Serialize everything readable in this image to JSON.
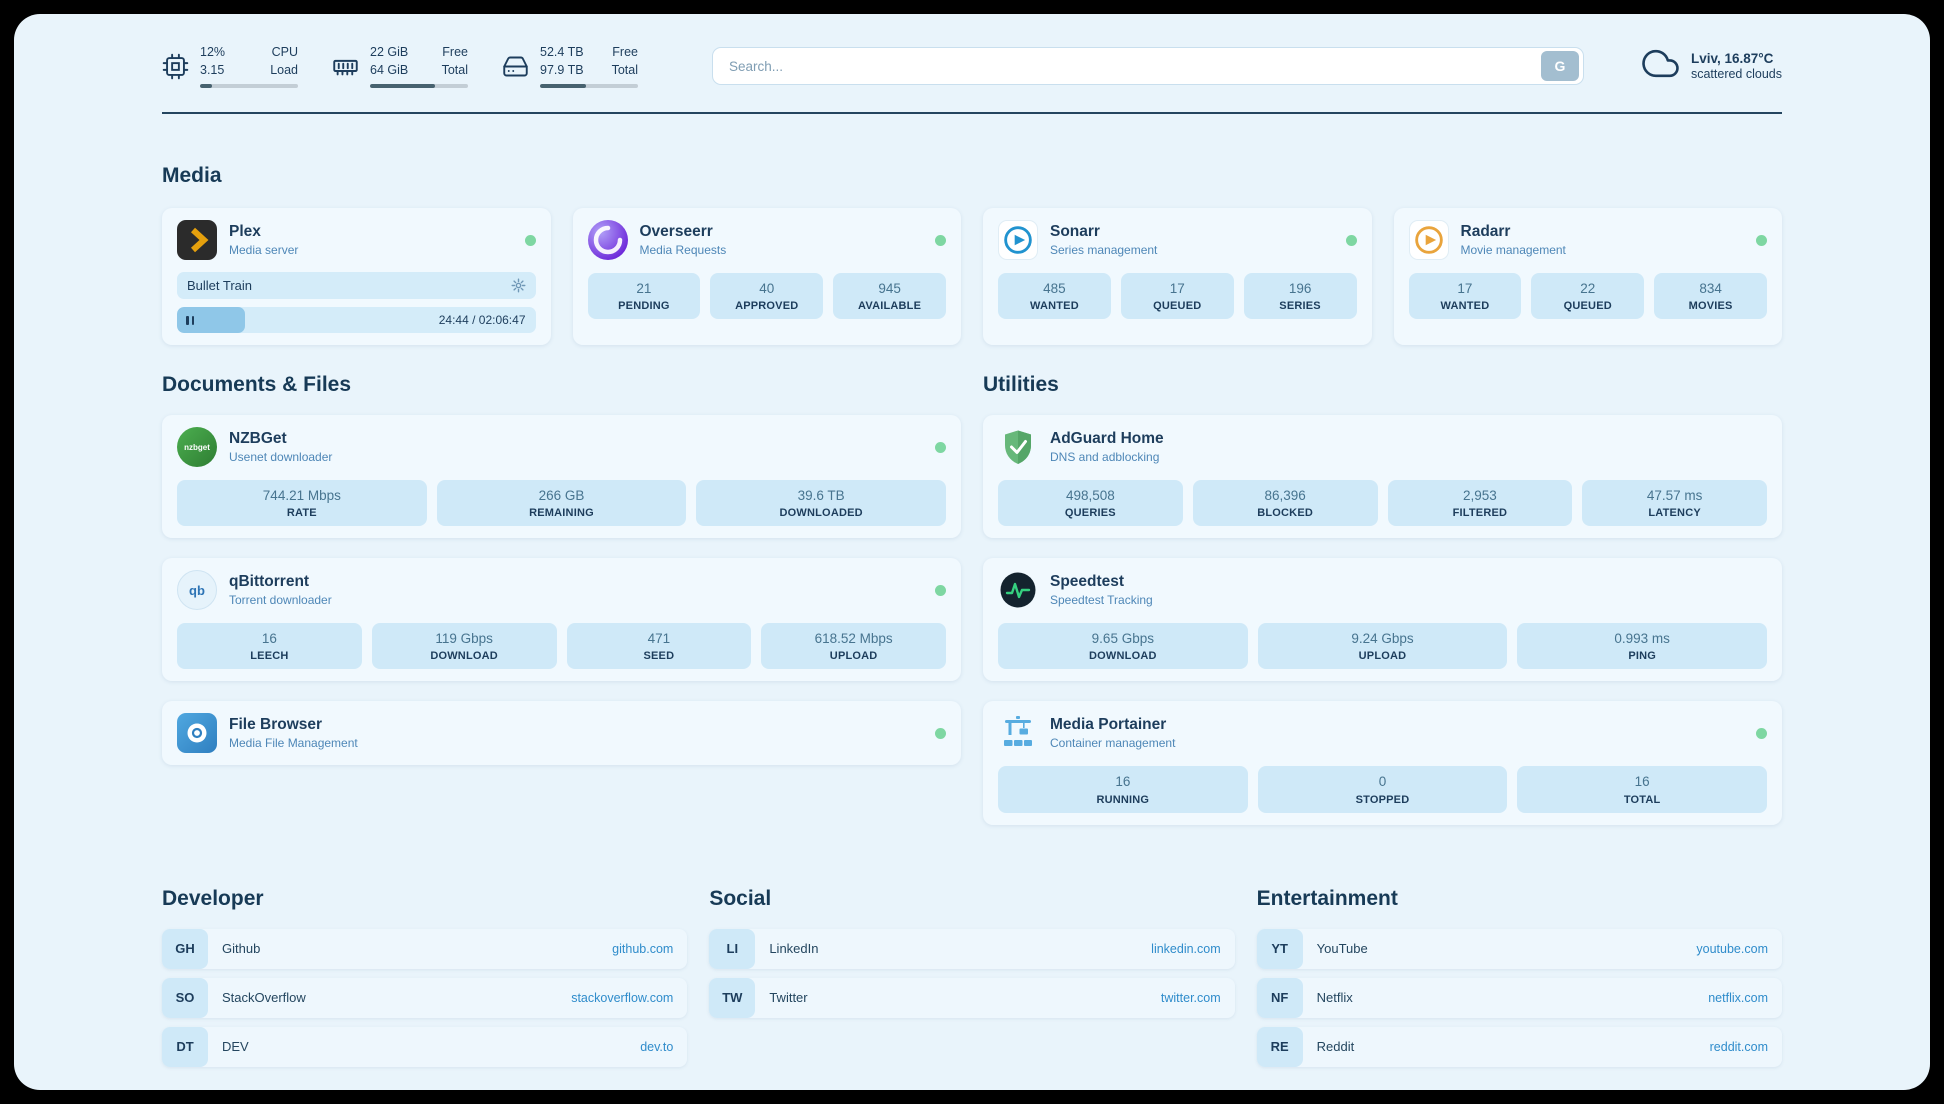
{
  "topbar": {
    "widgets": [
      {
        "name": "cpu",
        "rows": [
          {
            "value": "12%",
            "label": "CPU"
          },
          {
            "value": "3.15",
            "label": "Load"
          }
        ],
        "bar_percent": 12
      },
      {
        "name": "ram",
        "rows": [
          {
            "value": "22 GiB",
            "label": "Free"
          },
          {
            "value": "64 GiB",
            "label": "Total"
          }
        ],
        "bar_percent": 66
      },
      {
        "name": "disk",
        "rows": [
          {
            "value": "52.4 TB",
            "label": "Free"
          },
          {
            "value": "97.9 TB",
            "label": "Total"
          }
        ],
        "bar_percent": 47
      }
    ],
    "search": {
      "placeholder": "Search...",
      "button_label": "G"
    },
    "weather": {
      "location": "Lviv, 16.87°C",
      "condition": "scattered clouds"
    }
  },
  "sections": {
    "media": {
      "title": "Media",
      "plex": {
        "title": "Plex",
        "subtitle": "Media server",
        "now_playing": "Bullet Train",
        "progress_time": "24:44 / 02:06:47",
        "progress_percent": 19
      },
      "overseerr": {
        "title": "Overseerr",
        "subtitle": "Media Requests",
        "stats": [
          {
            "value": "21",
            "label": "PENDING"
          },
          {
            "value": "40",
            "label": "APPROVED"
          },
          {
            "value": "945",
            "label": "AVAILABLE"
          }
        ]
      },
      "sonarr": {
        "title": "Sonarr",
        "subtitle": "Series management",
        "stats": [
          {
            "value": "485",
            "label": "WANTED"
          },
          {
            "value": "17",
            "label": "QUEUED"
          },
          {
            "value": "196",
            "label": "SERIES"
          }
        ]
      },
      "radarr": {
        "title": "Radarr",
        "subtitle": "Movie management",
        "stats": [
          {
            "value": "17",
            "label": "WANTED"
          },
          {
            "value": "22",
            "label": "QUEUED"
          },
          {
            "value": "834",
            "label": "MOVIES"
          }
        ]
      }
    },
    "documents": {
      "title": "Documents & Files",
      "nzbget": {
        "title": "NZBGet",
        "subtitle": "Usenet downloader",
        "icon_text": "nzbget",
        "stats": [
          {
            "value": "744.21 Mbps",
            "label": "RATE"
          },
          {
            "value": "266 GB",
            "label": "REMAINING"
          },
          {
            "value": "39.6 TB",
            "label": "DOWNLOADED"
          }
        ]
      },
      "qbittorrent": {
        "title": "qBittorrent",
        "subtitle": "Torrent downloader",
        "icon_text": "qb",
        "stats": [
          {
            "value": "16",
            "label": "LEECH"
          },
          {
            "value": "119 Gbps",
            "label": "DOWNLOAD"
          },
          {
            "value": "471",
            "label": "SEED"
          },
          {
            "value": "618.52 Mbps",
            "label": "UPLOAD"
          }
        ]
      },
      "filebrowser": {
        "title": "File Browser",
        "subtitle": "Media File Management"
      }
    },
    "utilities": {
      "title": "Utilities",
      "adguard": {
        "title": "AdGuard Home",
        "subtitle": "DNS and adblocking",
        "stats": [
          {
            "value": "498,508",
            "label": "QUERIES"
          },
          {
            "value": "86,396",
            "label": "BLOCKED"
          },
          {
            "value": "2,953",
            "label": "FILTERED"
          },
          {
            "value": "47.57 ms",
            "label": "LATENCY"
          }
        ]
      },
      "speedtest": {
        "title": "Speedtest",
        "subtitle": "Speedtest Tracking",
        "stats": [
          {
            "value": "9.65 Gbps",
            "label": "DOWNLOAD"
          },
          {
            "value": "9.24 Gbps",
            "label": "UPLOAD"
          },
          {
            "value": "0.993 ms",
            "label": "PING"
          }
        ]
      },
      "portainer": {
        "title": "Media Portainer",
        "subtitle": "Container management",
        "stats": [
          {
            "value": "16",
            "label": "RUNNING"
          },
          {
            "value": "0",
            "label": "STOPPED"
          },
          {
            "value": "16",
            "label": "TOTAL"
          }
        ]
      }
    },
    "bookmark_groups": [
      {
        "title": "Developer",
        "items": [
          {
            "abbr": "GH",
            "name": "Github",
            "url": "github.com"
          },
          {
            "abbr": "SO",
            "name": "StackOverflow",
            "url": "stackoverflow.com"
          },
          {
            "abbr": "DT",
            "name": "DEV",
            "url": "dev.to"
          }
        ]
      },
      {
        "title": "Social",
        "items": [
          {
            "abbr": "LI",
            "name": "LinkedIn",
            "url": "linkedin.com"
          },
          {
            "abbr": "TW",
            "name": "Twitter",
            "url": "twitter.com"
          }
        ]
      },
      {
        "title": "Entertainment",
        "items": [
          {
            "abbr": "YT",
            "name": "YouTube",
            "url": "youtube.com"
          },
          {
            "abbr": "NF",
            "name": "Netflix",
            "url": "netflix.com"
          },
          {
            "abbr": "RE",
            "name": "Reddit",
            "url": "reddit.com"
          }
        ]
      }
    ]
  },
  "colors": {
    "page_bg": "#e9f4fb",
    "card_bg": "#f1f9fe",
    "stat_bg": "#cfe9f8",
    "ink": "#1d3d5c",
    "subtitle": "#4e87b7",
    "link": "#2f8ccb",
    "status_green": "#7ed7a2",
    "plex_yellow": "#e5a00d"
  }
}
